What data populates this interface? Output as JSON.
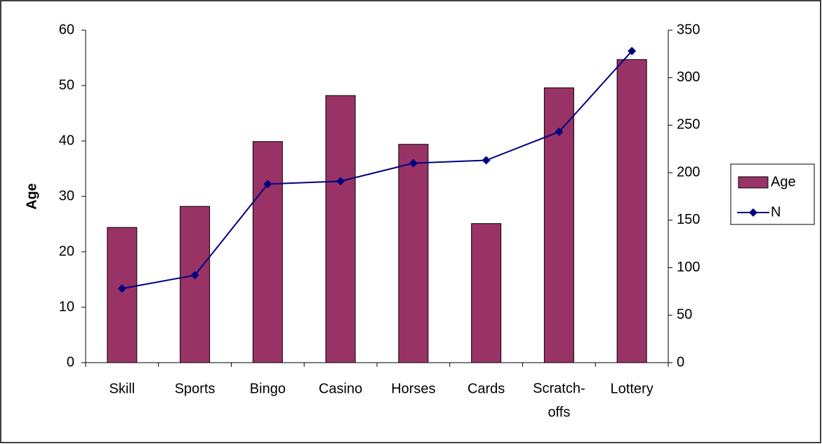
{
  "chart_data": {
    "type": "bar_line",
    "categories": [
      "Skill",
      "Sports",
      "Bingo",
      "Casino",
      "Horses",
      "Cards",
      "Scratch-offs",
      "Lottery"
    ],
    "y_label": "Age",
    "series": [
      {
        "name": "Age",
        "type": "bar",
        "color": "#993366",
        "values": [
          24.4,
          28.2,
          39.9,
          48.2,
          39.4,
          25.1,
          49.6,
          54.7
        ]
      },
      {
        "name": "N",
        "type": "line",
        "axis": "y2",
        "color": "#000080",
        "values": [
          78,
          92,
          188,
          191,
          210,
          213,
          243,
          328
        ]
      }
    ],
    "ylim": [
      0,
      60
    ],
    "yticks": [
      0,
      10,
      20,
      30,
      40,
      50,
      60
    ],
    "y2lim": [
      0,
      350
    ],
    "y2ticks": [
      0,
      50,
      100,
      150,
      200,
      250,
      300,
      350
    ],
    "legend": "right"
  }
}
